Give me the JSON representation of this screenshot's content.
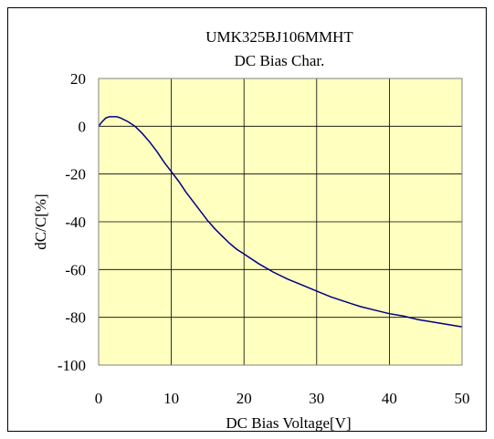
{
  "chart_data": {
    "type": "line",
    "title": "UMK325BJ106MMHT",
    "subtitle": "DC Bias Char.",
    "xlabel": "DC Bias Voltage[V]",
    "ylabel": "dC/C[%]",
    "xlim": [
      0,
      50
    ],
    "ylim": [
      -100,
      20
    ],
    "x_ticks": [
      "0",
      "10",
      "20",
      "30",
      "40",
      "50"
    ],
    "y_ticks": [
      "20",
      "0",
      "-20",
      "-40",
      "-60",
      "-80",
      "-100"
    ],
    "grid": true,
    "plot_background": "#ffffc0",
    "line_color": "#000080",
    "series": [
      {
        "x": [
          0,
          0.5,
          1,
          1.5,
          2,
          2.5,
          3,
          4,
          5,
          6,
          7,
          8,
          9,
          10,
          11,
          12,
          13,
          14,
          15,
          16,
          17,
          18,
          19,
          20,
          22,
          24,
          26,
          28,
          30,
          32,
          34,
          36,
          38,
          40,
          42,
          44,
          46,
          48,
          50
        ],
        "y": [
          0,
          2,
          3.5,
          4,
          4,
          4,
          3.5,
          2,
          0,
          -3,
          -6.5,
          -10.5,
          -15,
          -19,
          -23,
          -27.5,
          -31.5,
          -35.5,
          -39.5,
          -43,
          -46,
          -49,
          -51.5,
          -53.5,
          -57.5,
          -61,
          -64,
          -66.5,
          -69,
          -71.5,
          -73.5,
          -75.5,
          -77,
          -78.5,
          -79.5,
          -81,
          -82,
          -83,
          -84
        ]
      }
    ]
  }
}
